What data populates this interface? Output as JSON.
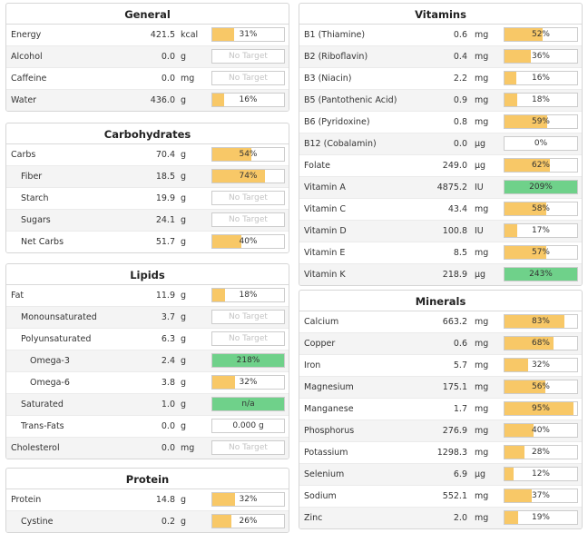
{
  "colors": {
    "bar_fill": "#f8c867",
    "bar_fill_over": "#6fd18a"
  },
  "panels": [
    {
      "id": "general",
      "col": "L",
      "title": "General",
      "rows": [
        {
          "label": "Energy",
          "value": "421.5",
          "unit": "kcal",
          "bar": "31%",
          "pct": 0.31
        },
        {
          "label": "Alcohol",
          "value": "0.0",
          "unit": "g",
          "bar": "No Target",
          "pct": null
        },
        {
          "label": "Caffeine",
          "value": "0.0",
          "unit": "mg",
          "bar": "No Target",
          "pct": null
        },
        {
          "label": "Water",
          "value": "436.0",
          "unit": "g",
          "bar": "16%",
          "pct": 0.16
        }
      ]
    },
    {
      "id": "carbohydrates",
      "col": "L",
      "title": "Carbohydrates",
      "rows": [
        {
          "label": "Carbs",
          "value": "70.4",
          "unit": "g",
          "bar": "54%",
          "pct": 0.54
        },
        {
          "label": "Fiber",
          "indent": 1,
          "value": "18.5",
          "unit": "g",
          "bar": "74%",
          "pct": 0.74
        },
        {
          "label": "Starch",
          "indent": 1,
          "value": "19.9",
          "unit": "g",
          "bar": "No Target",
          "pct": null
        },
        {
          "label": "Sugars",
          "indent": 1,
          "value": "24.1",
          "unit": "g",
          "bar": "No Target",
          "pct": null
        },
        {
          "label": "Net Carbs",
          "indent": 1,
          "value": "51.7",
          "unit": "g",
          "bar": "40%",
          "pct": 0.4
        }
      ]
    },
    {
      "id": "lipids",
      "col": "L",
      "title": "Lipids",
      "rows": [
        {
          "label": "Fat",
          "value": "11.9",
          "unit": "g",
          "bar": "18%",
          "pct": 0.18
        },
        {
          "label": "Monounsaturated",
          "indent": 1,
          "value": "3.7",
          "unit": "g",
          "bar": "No Target",
          "pct": null
        },
        {
          "label": "Polyunsaturated",
          "indent": 1,
          "value": "6.3",
          "unit": "g",
          "bar": "No Target",
          "pct": null
        },
        {
          "label": "Omega-3",
          "indent": 2,
          "value": "2.4",
          "unit": "g",
          "bar": "218%",
          "pct": 1.0,
          "over": true
        },
        {
          "label": "Omega-6",
          "indent": 2,
          "value": "3.8",
          "unit": "g",
          "bar": "32%",
          "pct": 0.32
        },
        {
          "label": "Saturated",
          "indent": 1,
          "value": "1.0",
          "unit": "g",
          "bar": "n/a",
          "pct": 1.0,
          "over": true
        },
        {
          "label": "Trans-Fats",
          "indent": 1,
          "value": "0.0",
          "unit": "g",
          "bar": "0.000 g",
          "pct": 0
        },
        {
          "label": "Cholesterol",
          "value": "0.0",
          "unit": "mg",
          "bar": "No Target",
          "pct": null
        }
      ]
    },
    {
      "id": "protein",
      "col": "L",
      "title": "Protein",
      "rows": [
        {
          "label": "Protein",
          "value": "14.8",
          "unit": "g",
          "bar": "32%",
          "pct": 0.32
        },
        {
          "label": "Cystine",
          "indent": 1,
          "value": "0.2",
          "unit": "g",
          "bar": "26%",
          "pct": 0.26
        }
      ]
    },
    {
      "id": "vitamins",
      "col": "R",
      "title": "Vitamins",
      "rows": [
        {
          "label": "B1 (Thiamine)",
          "value": "0.6",
          "unit": "mg",
          "bar": "52%",
          "pct": 0.52
        },
        {
          "label": "B2 (Riboflavin)",
          "value": "0.4",
          "unit": "mg",
          "bar": "36%",
          "pct": 0.36
        },
        {
          "label": "B3 (Niacin)",
          "value": "2.2",
          "unit": "mg",
          "bar": "16%",
          "pct": 0.16
        },
        {
          "label": "B5 (Pantothenic Acid)",
          "value": "0.9",
          "unit": "mg",
          "bar": "18%",
          "pct": 0.18
        },
        {
          "label": "B6 (Pyridoxine)",
          "value": "0.8",
          "unit": "mg",
          "bar": "59%",
          "pct": 0.59
        },
        {
          "label": "B12 (Cobalamin)",
          "value": "0.0",
          "unit": "µg",
          "bar": "0%",
          "pct": 0
        },
        {
          "label": "Folate",
          "value": "249.0",
          "unit": "µg",
          "bar": "62%",
          "pct": 0.62
        },
        {
          "label": "Vitamin A",
          "value": "4875.2",
          "unit": "IU",
          "bar": "209%",
          "pct": 1.0,
          "over": true
        },
        {
          "label": "Vitamin C",
          "value": "43.4",
          "unit": "mg",
          "bar": "58%",
          "pct": 0.58
        },
        {
          "label": "Vitamin D",
          "value": "100.8",
          "unit": "IU",
          "bar": "17%",
          "pct": 0.17
        },
        {
          "label": "Vitamin E",
          "value": "8.5",
          "unit": "mg",
          "bar": "57%",
          "pct": 0.57
        },
        {
          "label": "Vitamin K",
          "value": "218.9",
          "unit": "µg",
          "bar": "243%",
          "pct": 1.0,
          "over": true
        }
      ]
    },
    {
      "id": "minerals",
      "col": "R",
      "title": "Minerals",
      "rows": [
        {
          "label": "Calcium",
          "value": "663.2",
          "unit": "mg",
          "bar": "83%",
          "pct": 0.83
        },
        {
          "label": "Copper",
          "value": "0.6",
          "unit": "mg",
          "bar": "68%",
          "pct": 0.68
        },
        {
          "label": "Iron",
          "value": "5.7",
          "unit": "mg",
          "bar": "32%",
          "pct": 0.32
        },
        {
          "label": "Magnesium",
          "value": "175.1",
          "unit": "mg",
          "bar": "56%",
          "pct": 0.56
        },
        {
          "label": "Manganese",
          "value": "1.7",
          "unit": "mg",
          "bar": "95%",
          "pct": 0.95
        },
        {
          "label": "Phosphorus",
          "value": "276.9",
          "unit": "mg",
          "bar": "40%",
          "pct": 0.4
        },
        {
          "label": "Potassium",
          "value": "1298.3",
          "unit": "mg",
          "bar": "28%",
          "pct": 0.28
        },
        {
          "label": "Selenium",
          "value": "6.9",
          "unit": "µg",
          "bar": "12%",
          "pct": 0.12
        },
        {
          "label": "Sodium",
          "value": "552.1",
          "unit": "mg",
          "bar": "37%",
          "pct": 0.37
        },
        {
          "label": "Zinc",
          "value": "2.0",
          "unit": "mg",
          "bar": "19%",
          "pct": 0.19
        }
      ]
    }
  ]
}
